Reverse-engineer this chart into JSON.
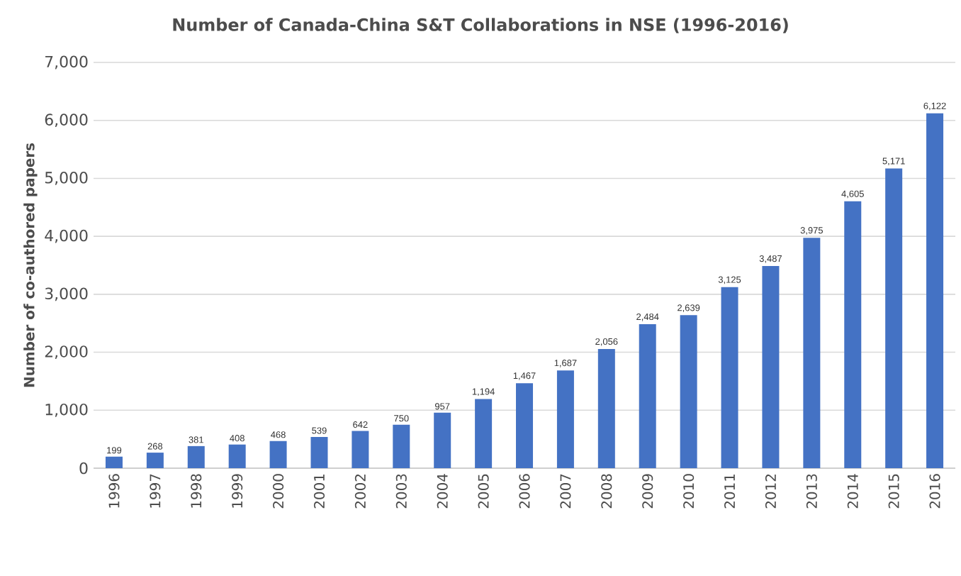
{
  "chart_data": {
    "type": "bar",
    "title": "Number of Canada-China S&T Collaborations in NSE (1996-2016)",
    "ylabel": "Number of co-authored papers",
    "categories": [
      "1996",
      "1997",
      "1998",
      "1999",
      "2000",
      "2001",
      "2002",
      "2003",
      "2004",
      "2005",
      "2006",
      "2007",
      "2008",
      "2009",
      "2010",
      "2011",
      "2012",
      "2013",
      "2014",
      "2015",
      "2016"
    ],
    "values": [
      199,
      268,
      381,
      408,
      468,
      539,
      642,
      750,
      957,
      1194,
      1467,
      1687,
      2056,
      2484,
      2639,
      3125,
      3487,
      3975,
      4605,
      5171,
      6122
    ],
    "value_labels": [
      "199",
      "268",
      "381",
      "408",
      "468",
      "539",
      "642",
      "750",
      "957",
      "1,194",
      "1,467",
      "1,687",
      "2,056",
      "2,484",
      "2,639",
      "3,125",
      "3,487",
      "3,975",
      "4,605",
      "5,171",
      "6,122"
    ],
    "color": "#4472c4",
    "ylim": [
      0,
      7000
    ],
    "yticks": [
      0,
      {
        "value": 1000,
        "label": "1,000"
      },
      {
        "value": 2000,
        "label": "2,000"
      },
      {
        "value": 3000,
        "label": "3,000"
      },
      {
        "value": 4000,
        "label": "4,000"
      },
      {
        "value": 5000,
        "label": "5,000"
      },
      {
        "value": 6000,
        "label": "6,000"
      },
      {
        "value": 7000,
        "label": "7,000"
      }
    ],
    "grid": "y"
  }
}
